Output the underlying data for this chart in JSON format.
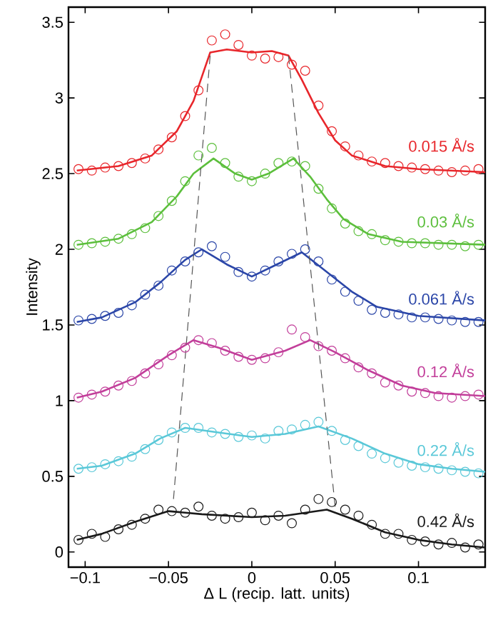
{
  "chart_data": {
    "type": "scatter",
    "xlabel": "Δ L (recip. latt. units)",
    "ylabel": "Intensity",
    "xlim": [
      -0.11,
      0.14
    ],
    "ylim": [
      -0.1,
      3.6
    ],
    "xticks": [
      {
        "value": -0.1,
        "label": "−0.1"
      },
      {
        "value": -0.05,
        "label": "−0.05"
      },
      0,
      0.05,
      0.1
    ],
    "yticks": [
      0,
      0.5,
      1,
      1.5,
      2,
      2.5,
      3,
      3.5
    ],
    "grid": false,
    "legend": false,
    "series": [
      {
        "marker": "circle",
        "name": "0.015 Å/s",
        "color": "#e8262b",
        "x": [
          -0.104,
          -0.096,
          -0.088,
          -0.08,
          -0.072,
          -0.064,
          -0.056,
          -0.048,
          -0.04,
          -0.032,
          -0.024,
          -0.016,
          -0.008,
          0.0,
          0.008,
          0.016,
          0.024,
          0.032,
          0.04,
          0.048,
          0.056,
          0.064,
          0.072,
          0.08,
          0.088,
          0.096,
          0.104,
          0.112,
          0.12,
          0.128,
          0.136
        ],
        "values": [
          2.53,
          2.52,
          2.54,
          2.55,
          2.57,
          2.6,
          2.66,
          2.74,
          2.88,
          3.05,
          3.38,
          3.42,
          3.35,
          3.28,
          3.26,
          3.27,
          3.22,
          3.18,
          2.95,
          2.78,
          2.68,
          2.62,
          2.58,
          2.57,
          2.55,
          2.54,
          2.53,
          2.52,
          2.51,
          2.52,
          2.53
        ]
      },
      {
        "type": "line",
        "color": "#e8262b",
        "x": [
          -0.105,
          -0.08,
          -0.06,
          -0.045,
          -0.035,
          -0.025,
          -0.015,
          0,
          0.012,
          0.022,
          0.03,
          0.04,
          0.05,
          0.06,
          0.08,
          0.1,
          0.14
        ],
        "values": [
          2.52,
          2.55,
          2.62,
          2.78,
          2.98,
          3.3,
          3.32,
          3.3,
          3.31,
          3.28,
          3.12,
          2.9,
          2.72,
          2.62,
          2.55,
          2.53,
          2.51
        ]
      },
      {
        "marker": "circle",
        "name": "0.03 Å/s",
        "color": "#5cbf3c",
        "x": [
          -0.104,
          -0.096,
          -0.088,
          -0.08,
          -0.072,
          -0.064,
          -0.056,
          -0.048,
          -0.04,
          -0.032,
          -0.024,
          -0.016,
          -0.008,
          0.0,
          0.008,
          0.016,
          0.024,
          0.032,
          0.04,
          0.048,
          0.056,
          0.064,
          0.072,
          0.08,
          0.088,
          0.096,
          0.104,
          0.112,
          0.12,
          0.128,
          0.136
        ],
        "values": [
          2.03,
          2.04,
          2.05,
          2.07,
          2.1,
          2.14,
          2.22,
          2.32,
          2.45,
          2.62,
          2.67,
          2.57,
          2.48,
          2.45,
          2.5,
          2.57,
          2.58,
          2.55,
          2.4,
          2.27,
          2.17,
          2.12,
          2.1,
          2.06,
          2.05,
          2.04,
          2.04,
          2.03,
          2.03,
          2.02,
          2.03
        ]
      },
      {
        "type": "line",
        "color": "#5cbf3c",
        "x": [
          -0.105,
          -0.08,
          -0.06,
          -0.045,
          -0.035,
          -0.023,
          -0.01,
          0,
          0.01,
          0.025,
          0.035,
          0.045,
          0.055,
          0.07,
          0.09,
          0.14
        ],
        "values": [
          2.03,
          2.07,
          2.18,
          2.35,
          2.5,
          2.6,
          2.5,
          2.46,
          2.5,
          2.6,
          2.48,
          2.33,
          2.2,
          2.1,
          2.05,
          2.03
        ]
      },
      {
        "marker": "circle",
        "name": "0.061 Å/s",
        "color": "#2b46a8",
        "x": [
          -0.104,
          -0.096,
          -0.088,
          -0.08,
          -0.072,
          -0.064,
          -0.056,
          -0.048,
          -0.04,
          -0.032,
          -0.024,
          -0.016,
          -0.008,
          0.0,
          0.008,
          0.016,
          0.024,
          0.032,
          0.04,
          0.048,
          0.056,
          0.064,
          0.072,
          0.08,
          0.088,
          0.096,
          0.104,
          0.112,
          0.12,
          0.128,
          0.136
        ],
        "values": [
          1.53,
          1.54,
          1.56,
          1.58,
          1.63,
          1.7,
          1.76,
          1.86,
          1.92,
          1.98,
          2.02,
          1.95,
          1.85,
          1.82,
          1.86,
          1.92,
          1.97,
          2.0,
          1.92,
          1.8,
          1.72,
          1.66,
          1.6,
          1.58,
          1.57,
          1.55,
          1.55,
          1.54,
          1.53,
          1.52,
          1.52
        ]
      },
      {
        "type": "line",
        "color": "#2b46a8",
        "x": [
          -0.105,
          -0.09,
          -0.07,
          -0.055,
          -0.04,
          -0.03,
          -0.015,
          0,
          0.015,
          0.03,
          0.045,
          0.06,
          0.075,
          0.1,
          0.14
        ],
        "values": [
          1.52,
          1.55,
          1.65,
          1.78,
          1.93,
          2.0,
          1.9,
          1.82,
          1.9,
          1.98,
          1.85,
          1.72,
          1.62,
          1.56,
          1.53
        ]
      },
      {
        "marker": "circle",
        "name": "0.12 Å/s",
        "color": "#c23e9a",
        "x": [
          -0.104,
          -0.096,
          -0.088,
          -0.08,
          -0.072,
          -0.064,
          -0.056,
          -0.048,
          -0.04,
          -0.032,
          -0.024,
          -0.016,
          -0.008,
          0.0,
          0.008,
          0.016,
          0.024,
          0.032,
          0.04,
          0.048,
          0.056,
          0.064,
          0.072,
          0.08,
          0.088,
          0.096,
          0.104,
          0.112,
          0.12,
          0.128,
          0.136
        ],
        "values": [
          1.02,
          1.04,
          1.06,
          1.1,
          1.13,
          1.18,
          1.24,
          1.3,
          1.35,
          1.4,
          1.38,
          1.33,
          1.29,
          1.27,
          1.28,
          1.32,
          1.47,
          1.42,
          1.36,
          1.33,
          1.28,
          1.22,
          1.18,
          1.12,
          1.1,
          1.06,
          1.05,
          1.03,
          1.02,
          1.03,
          1.04
        ]
      },
      {
        "type": "line",
        "color": "#c23e9a",
        "x": [
          -0.105,
          -0.09,
          -0.07,
          -0.05,
          -0.035,
          -0.02,
          0,
          0.02,
          0.035,
          0.05,
          0.07,
          0.09,
          0.11,
          0.14
        ],
        "values": [
          1.02,
          1.06,
          1.15,
          1.3,
          1.4,
          1.35,
          1.27,
          1.33,
          1.4,
          1.32,
          1.2,
          1.1,
          1.05,
          1.03
        ]
      },
      {
        "marker": "circle",
        "name": "0.22 Å/s",
        "color": "#5ac8d8",
        "x": [
          -0.104,
          -0.096,
          -0.088,
          -0.08,
          -0.072,
          -0.064,
          -0.056,
          -0.048,
          -0.04,
          -0.032,
          -0.024,
          -0.016,
          -0.008,
          0.0,
          0.008,
          0.016,
          0.024,
          0.032,
          0.04,
          0.048,
          0.056,
          0.064,
          0.072,
          0.08,
          0.088,
          0.096,
          0.104,
          0.112,
          0.12,
          0.128,
          0.136
        ],
        "values": [
          0.55,
          0.56,
          0.58,
          0.6,
          0.63,
          0.68,
          0.74,
          0.79,
          0.82,
          0.82,
          0.79,
          0.78,
          0.76,
          0.77,
          0.75,
          0.8,
          0.81,
          0.84,
          0.86,
          0.8,
          0.74,
          0.7,
          0.65,
          0.62,
          0.59,
          0.57,
          0.56,
          0.55,
          0.54,
          0.53,
          0.52
        ]
      },
      {
        "type": "line",
        "color": "#5ac8d8",
        "x": [
          -0.105,
          -0.09,
          -0.07,
          -0.055,
          -0.04,
          -0.02,
          0,
          0.02,
          0.04,
          0.06,
          0.08,
          0.1,
          0.12,
          0.14
        ],
        "values": [
          0.55,
          0.57,
          0.65,
          0.75,
          0.82,
          0.79,
          0.76,
          0.78,
          0.83,
          0.75,
          0.65,
          0.58,
          0.55,
          0.53
        ]
      },
      {
        "marker": "circle",
        "name": "0.42 Å/s",
        "color": "#1a1a1a",
        "x": [
          -0.104,
          -0.096,
          -0.088,
          -0.08,
          -0.072,
          -0.064,
          -0.056,
          -0.048,
          -0.04,
          -0.032,
          -0.024,
          -0.016,
          -0.008,
          0.0,
          0.008,
          0.016,
          0.024,
          0.032,
          0.04,
          0.048,
          0.056,
          0.064,
          0.072,
          0.08,
          0.088,
          0.096,
          0.104,
          0.112,
          0.12,
          0.128,
          0.136
        ],
        "values": [
          0.08,
          0.12,
          0.1,
          0.15,
          0.18,
          0.22,
          0.28,
          0.27,
          0.26,
          0.3,
          0.24,
          0.22,
          0.23,
          0.26,
          0.21,
          0.24,
          0.19,
          0.28,
          0.35,
          0.33,
          0.28,
          0.24,
          0.18,
          0.12,
          0.12,
          0.08,
          0.07,
          0.05,
          0.06,
          0.03,
          0.05
        ]
      },
      {
        "type": "line",
        "color": "#1a1a1a",
        "x": [
          -0.105,
          -0.09,
          -0.07,
          -0.05,
          -0.03,
          0,
          0.02,
          0.045,
          0.06,
          0.08,
          0.1,
          0.12,
          0.14
        ],
        "values": [
          0.08,
          0.12,
          0.2,
          0.27,
          0.25,
          0.23,
          0.24,
          0.28,
          0.22,
          0.13,
          0.08,
          0.05,
          0.03
        ]
      },
      {
        "type": "line",
        "line_style": "dashed",
        "color": "#555555",
        "x": [
          -0.047,
          -0.025
        ],
        "values": [
          0.35,
          3.28
        ]
      },
      {
        "type": "line",
        "line_style": "dashed",
        "color": "#555555",
        "x": [
          0.05,
          0.022
        ],
        "values": [
          0.3,
          3.28
        ]
      }
    ]
  }
}
